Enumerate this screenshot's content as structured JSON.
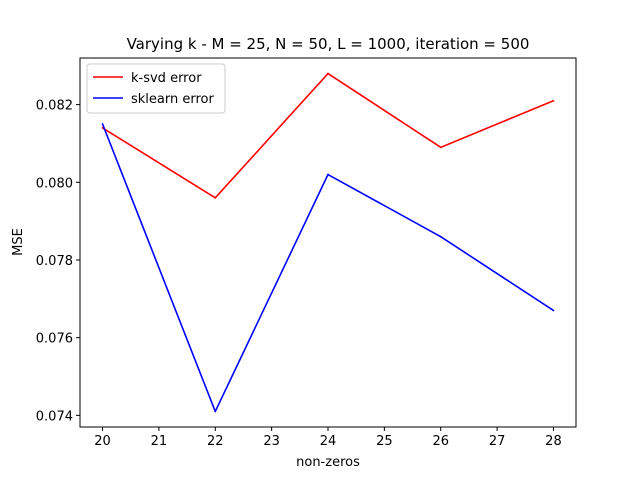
{
  "chart_data": {
    "type": "line",
    "title": "Varying k - M = 25, N = 50, L = 1000, iteration = 500",
    "xlabel": "non-zeros",
    "ylabel": "MSE",
    "x": [
      20,
      22,
      24,
      26,
      28
    ],
    "xlim": [
      19.6,
      28.4
    ],
    "ylim": [
      0.0737,
      0.0832
    ],
    "x_ticks": [
      "20",
      "21",
      "22",
      "23",
      "24",
      "25",
      "26",
      "27",
      "28"
    ],
    "y_ticks": [
      "0.074",
      "0.076",
      "0.078",
      "0.080",
      "0.082"
    ],
    "grid": false,
    "legend_position": "top-left",
    "series": [
      {
        "name": "k-svd error",
        "color": "#ff0000",
        "values": [
          0.0814,
          0.0796,
          0.0828,
          0.0809,
          0.0821
        ]
      },
      {
        "name": "sklearn error",
        "color": "#0000ff",
        "values": [
          0.0815,
          0.0741,
          0.0802,
          0.0786,
          0.0767
        ]
      }
    ]
  }
}
